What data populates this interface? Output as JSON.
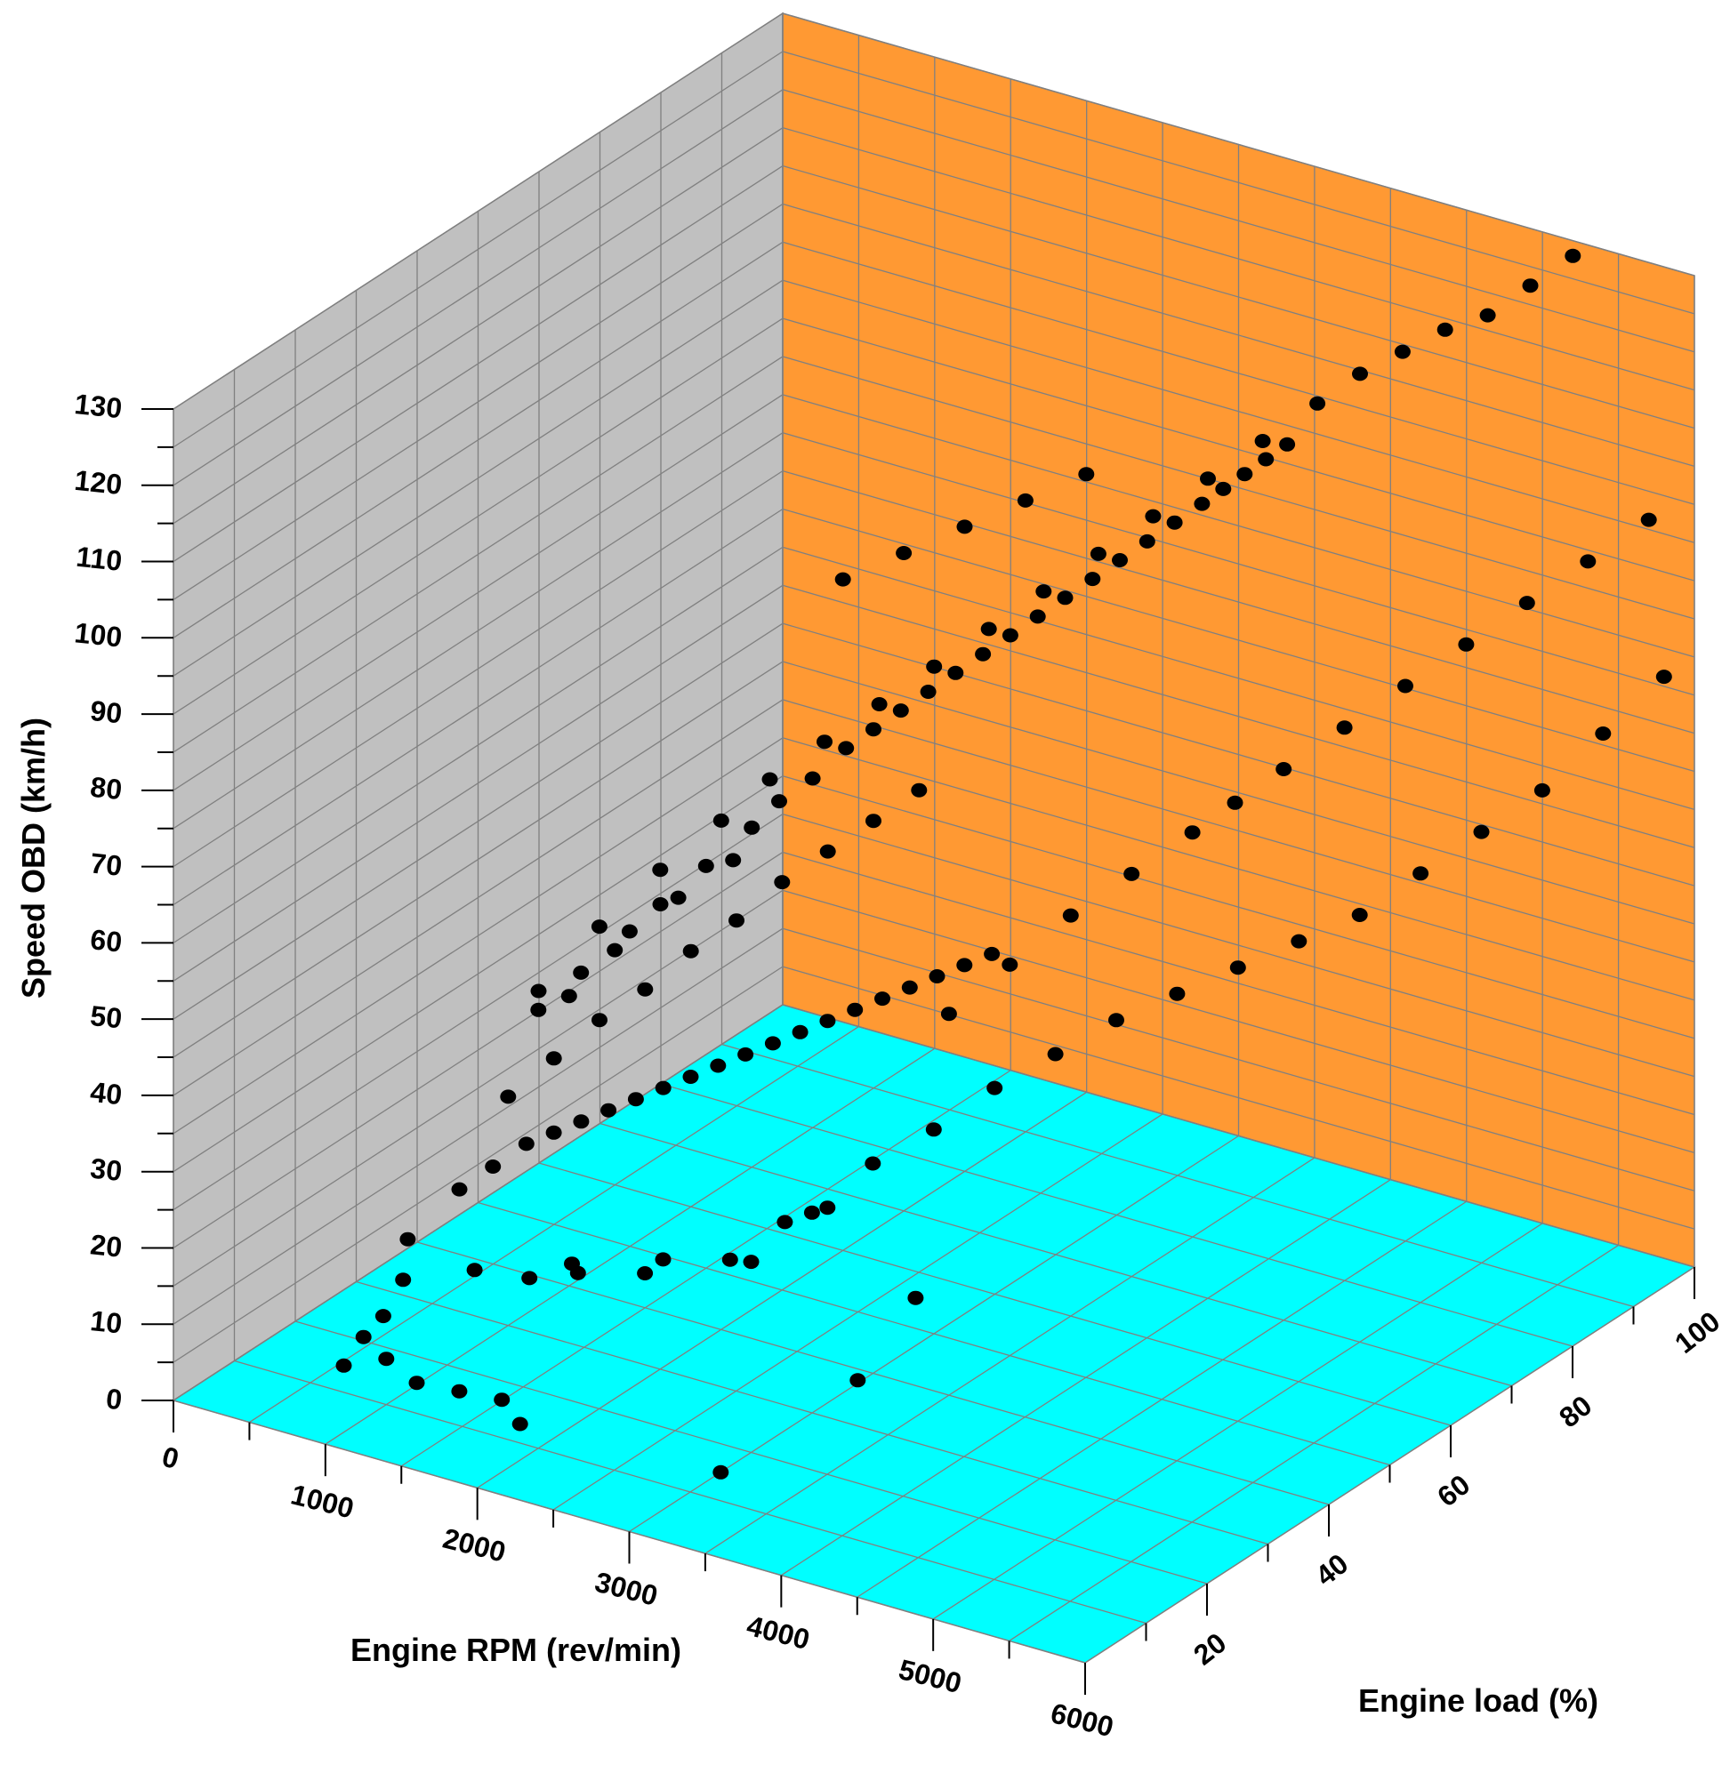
{
  "chart_data": {
    "type": "scatter",
    "projection": "3d",
    "title": "",
    "xlabel": "Engine RPM (rev/min)",
    "ylabel": "Engine load (%)",
    "zlabel": "Speed OBD (km/h)",
    "xlim": [
      0,
      6000
    ],
    "ylim": [
      0,
      100
    ],
    "zlim": [
      0,
      130
    ],
    "x_ticks": [
      "0",
      "1000",
      "2000",
      "3000",
      "4000",
      "5000",
      "6000"
    ],
    "y_ticks": [
      "20",
      "40",
      "60",
      "80",
      "100"
    ],
    "z_ticks": [
      "0",
      "10",
      "20",
      "30",
      "40",
      "50",
      "60",
      "70",
      "80",
      "90",
      "100",
      "110",
      "120",
      "130"
    ],
    "grid": true,
    "legend": "none",
    "colors": {
      "floor": "#00ffff",
      "side_wall": "#c0c0c0",
      "back_wall": "#ff9933",
      "grid_line": "#808080",
      "marker": "#000000"
    },
    "series": [
      {
        "marker": "circle",
        "color": "#000000",
        "points": [
          [
            800,
            8,
            5
          ],
          [
            850,
            10,
            8
          ],
          [
            900,
            12,
            10
          ],
          [
            950,
            14,
            14
          ],
          [
            1000,
            10,
            6
          ],
          [
            900,
            16,
            18
          ],
          [
            1200,
            10,
            4
          ],
          [
            1400,
            12,
            3
          ],
          [
            1600,
            14,
            2
          ],
          [
            1800,
            12,
            1
          ],
          [
            3000,
            15,
            0
          ],
          [
            1100,
            22,
            12
          ],
          [
            1300,
            26,
            10
          ],
          [
            1500,
            28,
            12
          ],
          [
            1700,
            24,
            14
          ],
          [
            1900,
            30,
            12
          ],
          [
            2100,
            28,
            16
          ],
          [
            2300,
            34,
            14
          ],
          [
            2500,
            38,
            18
          ],
          [
            2700,
            40,
            20
          ],
          [
            3200,
            42,
            10
          ],
          [
            3300,
            30,
            6
          ],
          [
            1000,
            22,
            22
          ],
          [
            1100,
            25,
            24
          ],
          [
            1200,
            28,
            26
          ],
          [
            1300,
            30,
            27
          ],
          [
            1400,
            32,
            28
          ],
          [
            1500,
            34,
            29
          ],
          [
            1600,
            36,
            30
          ],
          [
            1700,
            38,
            31
          ],
          [
            1800,
            40,
            32
          ],
          [
            1900,
            42,
            33
          ],
          [
            2000,
            44,
            34
          ],
          [
            2100,
            46,
            35
          ],
          [
            2200,
            48,
            36
          ],
          [
            2300,
            50,
            37
          ],
          [
            2400,
            52,
            38
          ],
          [
            2500,
            54,
            39
          ],
          [
            2600,
            56,
            40
          ],
          [
            2700,
            58,
            41
          ],
          [
            2800,
            60,
            42
          ],
          [
            2900,
            62,
            43
          ],
          [
            1000,
            30,
            30
          ],
          [
            1100,
            35,
            33
          ],
          [
            1200,
            40,
            36
          ],
          [
            1300,
            45,
            38
          ],
          [
            1400,
            50,
            41
          ],
          [
            1500,
            55,
            43
          ],
          [
            1600,
            60,
            46
          ],
          [
            1700,
            65,
            48
          ],
          [
            1800,
            70,
            50
          ],
          [
            1900,
            75,
            52
          ],
          [
            1000,
            40,
            38
          ],
          [
            1100,
            45,
            42
          ],
          [
            1200,
            50,
            46
          ],
          [
            1300,
            55,
            49
          ],
          [
            1400,
            60,
            52
          ],
          [
            1500,
            62,
            55
          ],
          [
            1600,
            65,
            57
          ],
          [
            1700,
            68,
            60
          ],
          [
            1800,
            70,
            62
          ],
          [
            1900,
            72,
            64
          ],
          [
            2000,
            74,
            66
          ],
          [
            2100,
            76,
            68
          ],
          [
            2200,
            78,
            70
          ],
          [
            2300,
            80,
            72
          ],
          [
            2400,
            82,
            74
          ],
          [
            2500,
            84,
            76
          ],
          [
            2600,
            86,
            78
          ],
          [
            2700,
            88,
            80
          ],
          [
            2800,
            90,
            82
          ],
          [
            2900,
            92,
            84
          ],
          [
            3000,
            94,
            86
          ],
          [
            3100,
            95,
            88
          ],
          [
            3200,
            96,
            90
          ],
          [
            3300,
            97,
            92
          ],
          [
            3400,
            98,
            94
          ],
          [
            1200,
            30,
            45
          ],
          [
            1400,
            35,
            52
          ],
          [
            1600,
            40,
            58
          ],
          [
            1800,
            45,
            63
          ],
          [
            2000,
            48,
            68
          ],
          [
            2200,
            52,
            72
          ],
          [
            2400,
            56,
            76
          ],
          [
            2600,
            60,
            80
          ],
          [
            2800,
            64,
            84
          ],
          [
            3000,
            68,
            88
          ],
          [
            3200,
            72,
            92
          ],
          [
            3400,
            76,
            96
          ],
          [
            3600,
            80,
            100
          ],
          [
            3800,
            84,
            104
          ],
          [
            4000,
            88,
            108
          ],
          [
            4200,
            90,
            112
          ],
          [
            4400,
            92,
            115
          ],
          [
            4600,
            94,
            118
          ],
          [
            4800,
            96,
            120
          ],
          [
            5000,
            98,
            124
          ],
          [
            5200,
            100,
            128
          ],
          [
            3500,
            40,
            50
          ],
          [
            3700,
            45,
            55
          ],
          [
            3900,
            50,
            60
          ],
          [
            4100,
            55,
            64
          ],
          [
            4300,
            60,
            68
          ],
          [
            4500,
            62,
            72
          ],
          [
            4700,
            65,
            76
          ],
          [
            4900,
            70,
            80
          ],
          [
            5100,
            75,
            84
          ],
          [
            5300,
            80,
            88
          ],
          [
            5500,
            85,
            92
          ],
          [
            5700,
            90,
            96
          ],
          [
            5900,
            95,
            100
          ],
          [
            3000,
            20,
            25
          ],
          [
            3200,
            25,
            30
          ],
          [
            3400,
            30,
            35
          ],
          [
            3600,
            35,
            38
          ],
          [
            3800,
            40,
            42
          ],
          [
            4000,
            45,
            45
          ],
          [
            4200,
            50,
            48
          ],
          [
            4400,
            55,
            50
          ],
          [
            4600,
            60,
            52
          ],
          [
            4800,
            65,
            54
          ],
          [
            5000,
            70,
            56
          ],
          [
            5200,
            75,
            60
          ],
          [
            5400,
            80,
            64
          ],
          [
            5600,
            85,
            68
          ],
          [
            5800,
            90,
            74
          ],
          [
            6000,
            95,
            80
          ],
          [
            2000,
            60,
            88
          ],
          [
            2200,
            65,
            90
          ],
          [
            2400,
            70,
            92
          ],
          [
            2600,
            75,
            94
          ],
          [
            2800,
            80,
            96
          ],
          [
            1600,
            20,
            50
          ],
          [
            1800,
            22,
            55
          ],
          [
            2000,
            25,
            60
          ],
          [
            2200,
            28,
            64
          ],
          [
            2400,
            32,
            68
          ]
        ]
      }
    ]
  }
}
